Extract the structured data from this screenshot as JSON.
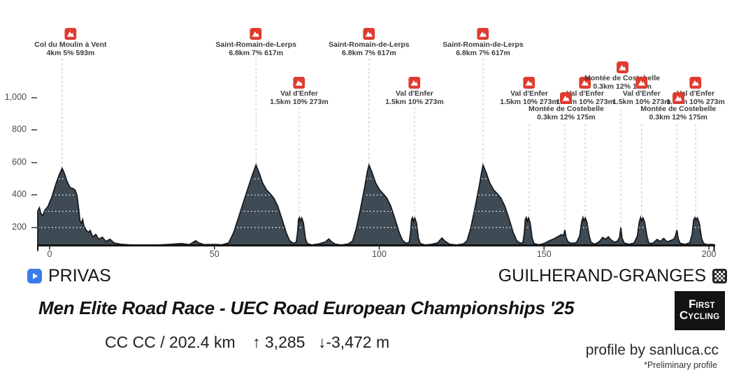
{
  "chart_data": {
    "type": "area",
    "profile_fill": "#3e4a54",
    "profile_outline": "#15171a",
    "climb_icon_color": "#e03b2f",
    "xlim": [
      -3.6,
      201.6
    ],
    "x_ticks": [
      {
        "km": 0,
        "label": "0"
      },
      {
        "km": 50,
        "label": "50"
      },
      {
        "km": 100,
        "label": "100"
      },
      {
        "km": 150,
        "label": "150"
      },
      {
        "km": 200,
        "label": "200"
      }
    ],
    "y_ticks": [
      {
        "m": 200,
        "label": "200"
      },
      {
        "m": 400,
        "label": "400"
      },
      {
        "m": 600,
        "label": "600"
      },
      {
        "m": 800,
        "label": "800"
      },
      {
        "m": 1000,
        "label": "1,000"
      }
    ],
    "grid_m": [
      200,
      300,
      400,
      500
    ],
    "climbs": [
      {
        "name": "Col du Moulin à Vent",
        "stats": "4km 5% 593m",
        "km": 3.8,
        "row": "top",
        "peak_draw_m": 565,
        "dash_top": 84,
        "dx": 12
      },
      {
        "name": "Saint-Romain-de-Lerps",
        "stats": "6.8km 7% 617m",
        "km": 62.6,
        "row": "top",
        "peak_draw_m": 585,
        "dash_top": 84,
        "dx": 0
      },
      {
        "name": "Saint-Romain-de-Lerps",
        "stats": "6.8km 7% 617m",
        "km": 96.9,
        "row": "top",
        "peak_draw_m": 585,
        "dash_top": 84,
        "dx": 0
      },
      {
        "name": "Saint-Romain-de-Lerps",
        "stats": "6.8km 7% 617m",
        "km": 131.5,
        "row": "top",
        "peak_draw_m": 585,
        "dash_top": 84,
        "dx": 0
      },
      {
        "name": "Val d'Enfer",
        "stats": "1.5km 10% 273m",
        "km": 75.7,
        "row": "mid",
        "peak_draw_m": 262,
        "dash_top": 154,
        "dx": 0
      },
      {
        "name": "Val d'Enfer",
        "stats": "1.5km 10% 273m",
        "km": 110.7,
        "row": "mid",
        "peak_draw_m": 262,
        "dash_top": 154,
        "dx": 0
      },
      {
        "name": "Val d'Enfer",
        "stats": "1.5km 10% 273m",
        "km": 145.5,
        "row": "mid",
        "peak_draw_m": 262,
        "dash_top": 178,
        "dx": 0
      },
      {
        "name": "Val d'Enfer",
        "stats": "1.5km 10% 273m",
        "km": 162.5,
        "row": "mid",
        "peak_draw_m": 262,
        "dash_top": 178,
        "dx": 0
      },
      {
        "name": "Montée de Costebelle",
        "stats": "0.3km 12% 175m",
        "km": 156.3,
        "row": "low",
        "peak_draw_m": 185,
        "dash_top": 178,
        "dx": 2
      },
      {
        "name": "Montée de Costebelle",
        "stats": "0.3km 12% 175m",
        "km": 173.3,
        "row": "high2",
        "peak_draw_m": 200,
        "dash_top": 156,
        "dx": 2
      },
      {
        "name": "Val d'Enfer",
        "stats": "1.5km 10% 273m",
        "km": 179.6,
        "row": "mid",
        "peak_draw_m": 262,
        "dash_top": 178,
        "dx": 0
      },
      {
        "name": "Val d'Enfer",
        "stats": "1.5km 10% 273m",
        "km": 196.0,
        "row": "mid",
        "peak_draw_m": 262,
        "dash_top": 178,
        "dx": 0
      },
      {
        "name": "Montée de Costebelle",
        "stats": "0.3km 12% 175m",
        "km": 190.3,
        "row": "low",
        "peak_draw_m": 185,
        "dash_top": 178,
        "dx": 2
      }
    ],
    "profile_km_m": [
      [
        -3.6,
        300
      ],
      [
        -3.1,
        322
      ],
      [
        -2.7,
        288
      ],
      [
        -2.1,
        272
      ],
      [
        -1.5,
        305
      ],
      [
        -0.5,
        330
      ],
      [
        0.7,
        390
      ],
      [
        1.8,
        462
      ],
      [
        2.9,
        525
      ],
      [
        3.8,
        565
      ],
      [
        4.5,
        532
      ],
      [
        5.1,
        495
      ],
      [
        5.7,
        465
      ],
      [
        6.3,
        445
      ],
      [
        7.1,
        440
      ],
      [
        7.7,
        432
      ],
      [
        8.3,
        398
      ],
      [
        8.8,
        318
      ],
      [
        9.2,
        242
      ],
      [
        9.6,
        226
      ],
      [
        10.0,
        250
      ],
      [
        10.4,
        210
      ],
      [
        11.0,
        187
      ],
      [
        11.7,
        170
      ],
      [
        12.3,
        182
      ],
      [
        13.1,
        142
      ],
      [
        14.0,
        158
      ],
      [
        14.9,
        128
      ],
      [
        16.0,
        141
      ],
      [
        17.1,
        114
      ],
      [
        18.3,
        128
      ],
      [
        19.6,
        105
      ],
      [
        21.4,
        98
      ],
      [
        24.0,
        94
      ],
      [
        28.0,
        91
      ],
      [
        33.0,
        93
      ],
      [
        37.0,
        97
      ],
      [
        40.0,
        102
      ],
      [
        42.4,
        95
      ],
      [
        44.3,
        119
      ],
      [
        45.2,
        106
      ],
      [
        46.9,
        95
      ],
      [
        50.0,
        96
      ],
      [
        52.3,
        94
      ],
      [
        54.3,
        105
      ],
      [
        55.8,
        168
      ],
      [
        57.3,
        262
      ],
      [
        58.8,
        356
      ],
      [
        60.3,
        450
      ],
      [
        61.7,
        535
      ],
      [
        62.6,
        585
      ],
      [
        63.5,
        540
      ],
      [
        64.6,
        475
      ],
      [
        65.8,
        432
      ],
      [
        66.9,
        408
      ],
      [
        68.0,
        382
      ],
      [
        69.2,
        332
      ],
      [
        70.5,
        252
      ],
      [
        71.7,
        172
      ],
      [
        72.8,
        120
      ],
      [
        73.9,
        103
      ],
      [
        74.8,
        110
      ],
      [
        75.2,
        168
      ],
      [
        75.5,
        250
      ],
      [
        75.8,
        262
      ],
      [
        76.1,
        238
      ],
      [
        76.5,
        259
      ],
      [
        77.0,
        228
      ],
      [
        77.6,
        133
      ],
      [
        78.2,
        101
      ],
      [
        79.6,
        93
      ],
      [
        81.6,
        99
      ],
      [
        83.6,
        111
      ],
      [
        84.7,
        130
      ],
      [
        85.5,
        113
      ],
      [
        86.7,
        98
      ],
      [
        88.6,
        93
      ],
      [
        90.6,
        99
      ],
      [
        91.9,
        117
      ],
      [
        93.0,
        192
      ],
      [
        94.3,
        315
      ],
      [
        95.6,
        452
      ],
      [
        96.4,
        545
      ],
      [
        96.9,
        585
      ],
      [
        97.8,
        540
      ],
      [
        98.9,
        475
      ],
      [
        100.1,
        432
      ],
      [
        101.2,
        408
      ],
      [
        102.3,
        382
      ],
      [
        103.5,
        332
      ],
      [
        104.8,
        252
      ],
      [
        106.0,
        172
      ],
      [
        107.1,
        120
      ],
      [
        108.2,
        103
      ],
      [
        109.1,
        110
      ],
      [
        109.5,
        168
      ],
      [
        109.8,
        250
      ],
      [
        110.1,
        262
      ],
      [
        110.4,
        238
      ],
      [
        110.8,
        259
      ],
      [
        111.3,
        228
      ],
      [
        111.9,
        133
      ],
      [
        112.5,
        101
      ],
      [
        114.0,
        93
      ],
      [
        116.0,
        97
      ],
      [
        117.8,
        107
      ],
      [
        119.0,
        136
      ],
      [
        119.9,
        117
      ],
      [
        121.3,
        98
      ],
      [
        123.5,
        93
      ],
      [
        125.5,
        99
      ],
      [
        126.6,
        117
      ],
      [
        127.7,
        192
      ],
      [
        129.0,
        315
      ],
      [
        130.3,
        452
      ],
      [
        131.1,
        545
      ],
      [
        131.5,
        585
      ],
      [
        132.4,
        540
      ],
      [
        133.5,
        475
      ],
      [
        134.7,
        432
      ],
      [
        135.8,
        408
      ],
      [
        136.9,
        382
      ],
      [
        138.1,
        332
      ],
      [
        139.4,
        252
      ],
      [
        140.6,
        172
      ],
      [
        141.7,
        120
      ],
      [
        142.8,
        103
      ],
      [
        143.6,
        110
      ],
      [
        144.0,
        168
      ],
      [
        144.3,
        250
      ],
      [
        144.6,
        262
      ],
      [
        144.9,
        238
      ],
      [
        145.3,
        259
      ],
      [
        145.8,
        228
      ],
      [
        146.4,
        133
      ],
      [
        147.0,
        101
      ],
      [
        148.5,
        94
      ],
      [
        150.0,
        102
      ],
      [
        151.5,
        117
      ],
      [
        153.0,
        131
      ],
      [
        154.3,
        145
      ],
      [
        155.3,
        157
      ],
      [
        155.9,
        149
      ],
      [
        156.3,
        185
      ],
      [
        156.7,
        139
      ],
      [
        157.3,
        111
      ],
      [
        158.3,
        103
      ],
      [
        159.8,
        107
      ],
      [
        160.8,
        148
      ],
      [
        161.4,
        235
      ],
      [
        161.8,
        262
      ],
      [
        162.1,
        240
      ],
      [
        162.5,
        260
      ],
      [
        163.0,
        235
      ],
      [
        163.7,
        148
      ],
      [
        164.3,
        107
      ],
      [
        165.5,
        98
      ],
      [
        166.8,
        114
      ],
      [
        167.8,
        140
      ],
      [
        168.6,
        127
      ],
      [
        169.5,
        143
      ],
      [
        170.4,
        123
      ],
      [
        171.4,
        109
      ],
      [
        172.3,
        117
      ],
      [
        172.9,
        139
      ],
      [
        173.3,
        200
      ],
      [
        173.7,
        134
      ],
      [
        174.3,
        105
      ],
      [
        175.8,
        97
      ],
      [
        177.3,
        105
      ],
      [
        178.3,
        148
      ],
      [
        178.9,
        235
      ],
      [
        179.3,
        262
      ],
      [
        179.6,
        240
      ],
      [
        180.0,
        260
      ],
      [
        180.5,
        235
      ],
      [
        181.2,
        148
      ],
      [
        181.8,
        104
      ],
      [
        183.0,
        103
      ],
      [
        184.3,
        127
      ],
      [
        185.3,
        114
      ],
      [
        186.3,
        133
      ],
      [
        187.3,
        112
      ],
      [
        188.5,
        121
      ],
      [
        189.4,
        129
      ],
      [
        189.9,
        151
      ],
      [
        190.3,
        185
      ],
      [
        190.7,
        131
      ],
      [
        191.3,
        103
      ],
      [
        192.8,
        96
      ],
      [
        194.2,
        107
      ],
      [
        194.9,
        158
      ],
      [
        195.4,
        248
      ],
      [
        195.8,
        262
      ],
      [
        196.1,
        246
      ],
      [
        196.5,
        260
      ],
      [
        197.1,
        228
      ],
      [
        197.8,
        133
      ],
      [
        198.4,
        102
      ],
      [
        199.5,
        95
      ],
      [
        200.5,
        96
      ],
      [
        201.6,
        95
      ]
    ]
  },
  "footer": {
    "start_label": "PRIVAS",
    "finish_label": "GUILHERAND-GRANGES",
    "title": "Men Elite Road Race - UEC Road European Championships '25",
    "stats": {
      "code_distance": "CC CC / 202.4 km",
      "ascent": "↑ 3,285",
      "descent": "↓-3,472 m"
    },
    "credit": "profile by sanluca.cc",
    "preliminary": "*Preliminary profile",
    "logo": {
      "l1_big": "F",
      "l1_small": "IRST",
      "l2_big": "C",
      "l2_small": "YCLING"
    }
  },
  "colors": {
    "start_icon": "#3b7ce8",
    "finish_icon": "#262626",
    "climb_icon": "#e03b2f"
  }
}
